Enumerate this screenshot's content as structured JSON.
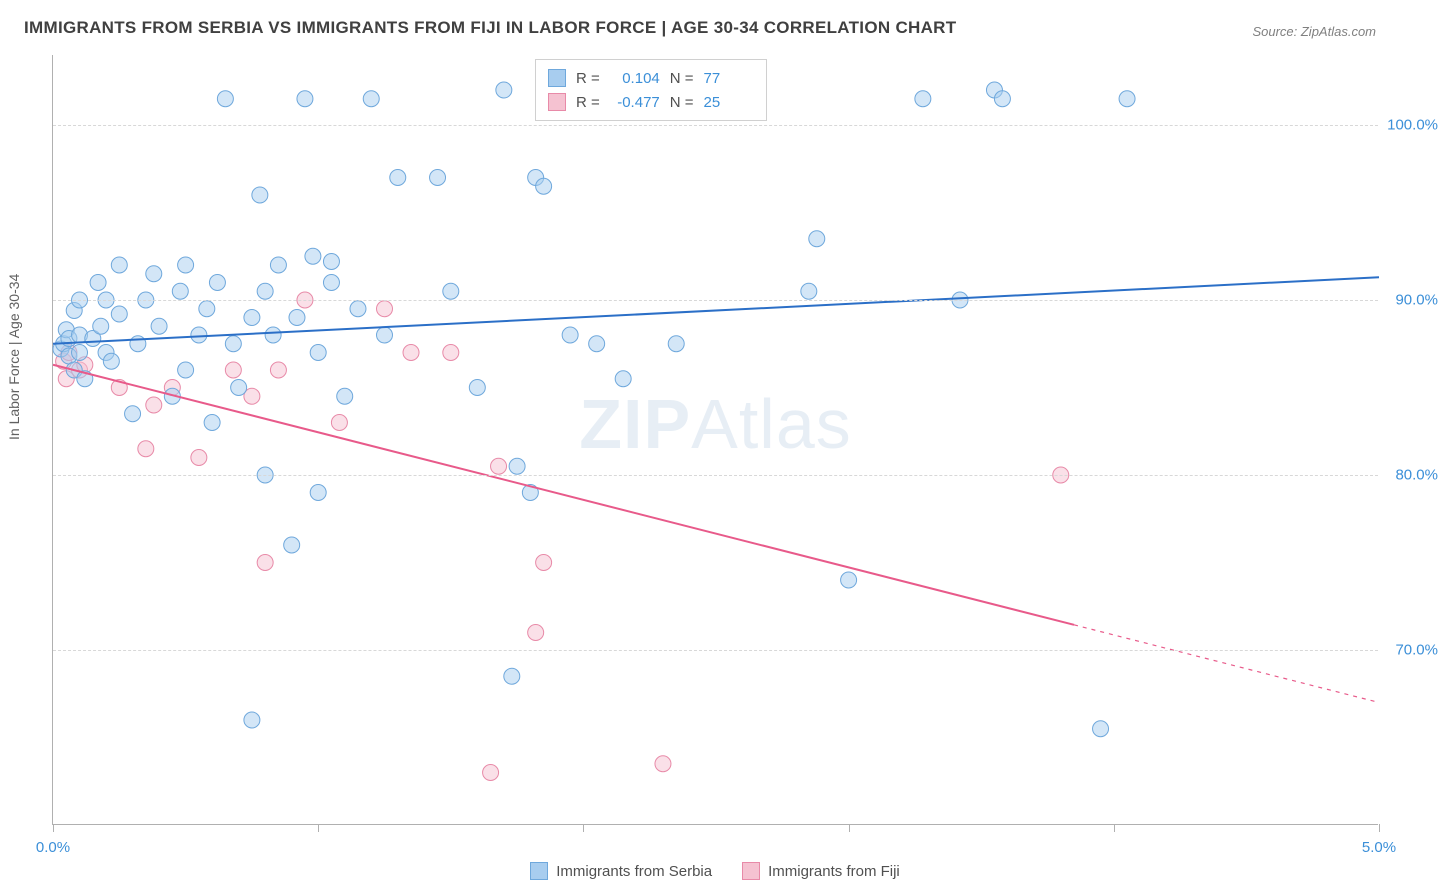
{
  "title": "IMMIGRANTS FROM SERBIA VS IMMIGRANTS FROM FIJI IN LABOR FORCE | AGE 30-34 CORRELATION CHART",
  "source": "Source: ZipAtlas.com",
  "ylabel": "In Labor Force | Age 30-34",
  "watermark_bold": "ZIP",
  "watermark_thin": "Atlas",
  "chart": {
    "type": "scatter",
    "background_color": "#ffffff",
    "grid_color": "#d8d8d8",
    "axis_color": "#b0b0b0",
    "label_color": "#606060",
    "tick_label_color": "#3b8fd8",
    "title_color": "#404040",
    "title_fontsize": 17,
    "label_fontsize": 14,
    "tick_fontsize": 15,
    "xlim": [
      0.0,
      5.0
    ],
    "ylim": [
      60.0,
      104.0
    ],
    "xticks": [
      0.0,
      1.0,
      2.0,
      3.0,
      4.0,
      5.0
    ],
    "xtick_labels_shown": {
      "0.0": "0.0%",
      "5.0": "5.0%"
    },
    "yticks": [
      70.0,
      80.0,
      90.0,
      100.0
    ],
    "ytick_labels": [
      "70.0%",
      "80.0%",
      "90.0%",
      "100.0%"
    ],
    "marker_radius": 8,
    "marker_opacity": 0.5,
    "line_width": 2,
    "series": {
      "serbia": {
        "label": "Immigrants from Serbia",
        "color_fill": "#a8cdef",
        "color_stroke": "#6fa8dc",
        "R": "0.104",
        "N": "77",
        "trend": {
          "color": "#2b6fc7",
          "y_at_xmin": 87.5,
          "y_at_xmax": 91.3,
          "x_extent": [
            0.0,
            5.0
          ],
          "dash_after": null
        },
        "points": [
          [
            0.03,
            87.2
          ],
          [
            0.04,
            87.5
          ],
          [
            0.05,
            88.3
          ],
          [
            0.06,
            86.8
          ],
          [
            0.06,
            87.8
          ],
          [
            0.08,
            89.4
          ],
          [
            0.08,
            86.0
          ],
          [
            0.1,
            87.0
          ],
          [
            0.1,
            88.0
          ],
          [
            0.1,
            90.0
          ],
          [
            0.12,
            85.5
          ],
          [
            0.15,
            87.8
          ],
          [
            0.17,
            91.0
          ],
          [
            0.18,
            88.5
          ],
          [
            0.2,
            87.0
          ],
          [
            0.2,
            90.0
          ],
          [
            0.22,
            86.5
          ],
          [
            0.25,
            89.2
          ],
          [
            0.25,
            92.0
          ],
          [
            0.3,
            83.5
          ],
          [
            0.32,
            87.5
          ],
          [
            0.35,
            90.0
          ],
          [
            0.38,
            91.5
          ],
          [
            0.4,
            88.5
          ],
          [
            0.45,
            84.5
          ],
          [
            0.48,
            90.5
          ],
          [
            0.5,
            86.0
          ],
          [
            0.5,
            92.0
          ],
          [
            0.55,
            88.0
          ],
          [
            0.58,
            89.5
          ],
          [
            0.6,
            83.0
          ],
          [
            0.62,
            91.0
          ],
          [
            0.65,
            101.5
          ],
          [
            0.68,
            87.5
          ],
          [
            0.7,
            85.0
          ],
          [
            0.75,
            89.0
          ],
          [
            0.75,
            66.0
          ],
          [
            0.78,
            96.0
          ],
          [
            0.8,
            90.5
          ],
          [
            0.8,
            80.0
          ],
          [
            0.83,
            88.0
          ],
          [
            0.85,
            92.0
          ],
          [
            0.9,
            76.0
          ],
          [
            0.92,
            89.0
          ],
          [
            0.95,
            101.5
          ],
          [
            0.98,
            92.5
          ],
          [
            1.0,
            87.0
          ],
          [
            1.0,
            79.0
          ],
          [
            1.05,
            91.0
          ],
          [
            1.05,
            92.2
          ],
          [
            1.1,
            84.5
          ],
          [
            1.15,
            89.5
          ],
          [
            1.2,
            101.5
          ],
          [
            1.25,
            88.0
          ],
          [
            1.3,
            97.0
          ],
          [
            1.45,
            97.0
          ],
          [
            1.5,
            90.5
          ],
          [
            1.6,
            85.0
          ],
          [
            1.7,
            102.0
          ],
          [
            1.73,
            68.5
          ],
          [
            1.75,
            80.5
          ],
          [
            1.8,
            79.0
          ],
          [
            1.82,
            97.0
          ],
          [
            1.85,
            96.5
          ],
          [
            1.95,
            88.0
          ],
          [
            2.05,
            87.5
          ],
          [
            2.15,
            85.5
          ],
          [
            2.35,
            87.5
          ],
          [
            2.85,
            90.5
          ],
          [
            2.88,
            93.5
          ],
          [
            3.0,
            74.0
          ],
          [
            3.28,
            101.5
          ],
          [
            3.42,
            90.0
          ],
          [
            3.55,
            102.0
          ],
          [
            3.58,
            101.5
          ],
          [
            3.95,
            65.5
          ],
          [
            4.05,
            101.5
          ]
        ]
      },
      "fiji": {
        "label": "Immigrants from Fiji",
        "color_fill": "#f5c2d1",
        "color_stroke": "#e88aa8",
        "R": "-0.477",
        "N": "25",
        "trend": {
          "color": "#e85a8a",
          "y_at_xmin": 86.3,
          "y_at_xmax": 67.0,
          "x_extent": [
            0.0,
            5.0
          ],
          "dash_after": 3.85
        },
        "points": [
          [
            0.04,
            86.5
          ],
          [
            0.05,
            85.5
          ],
          [
            0.06,
            87.0
          ],
          [
            0.1,
            86.0
          ],
          [
            0.12,
            86.3
          ],
          [
            0.25,
            85.0
          ],
          [
            0.35,
            81.5
          ],
          [
            0.38,
            84.0
          ],
          [
            0.45,
            85.0
          ],
          [
            0.55,
            81.0
          ],
          [
            0.68,
            86.0
          ],
          [
            0.75,
            84.5
          ],
          [
            0.8,
            75.0
          ],
          [
            0.85,
            86.0
          ],
          [
            0.95,
            90.0
          ],
          [
            1.08,
            83.0
          ],
          [
            1.25,
            89.5
          ],
          [
            1.35,
            87.0
          ],
          [
            1.5,
            87.0
          ],
          [
            1.65,
            63.0
          ],
          [
            1.68,
            80.5
          ],
          [
            1.82,
            71.0
          ],
          [
            1.85,
            75.0
          ],
          [
            2.3,
            63.5
          ],
          [
            3.8,
            80.0
          ]
        ]
      }
    },
    "legend_stats": {
      "rows": [
        {
          "swatch_fill": "#a8cdef",
          "swatch_stroke": "#6fa8dc",
          "label": "R =",
          "val1": "0.104",
          "label2": "N =",
          "val2": "77"
        },
        {
          "swatch_fill": "#f5c2d1",
          "swatch_stroke": "#e88aa8",
          "label": "R =",
          "val1": "-0.477",
          "label2": "N =",
          "val2": "25"
        }
      ]
    }
  }
}
